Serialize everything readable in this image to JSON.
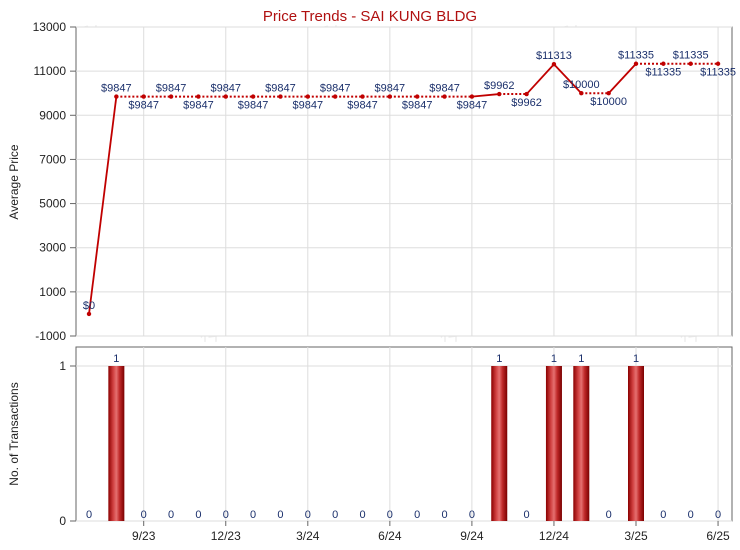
{
  "chart_data": [
    {
      "type": "line",
      "title": "Price Trends - SAI KUNG BLDG",
      "ylabel": "Average Price",
      "xlabel": "",
      "ylim": [
        -1000,
        13000
      ],
      "yticks": [
        "-1000",
        "1000",
        "3000",
        "5000",
        "7000",
        "9000",
        "11000",
        "13000"
      ],
      "ytick_values": [
        -1000,
        1000,
        3000,
        5000,
        7000,
        9000,
        11000,
        13000
      ],
      "x_tick_labels": [
        "9/23",
        "12/23",
        "3/24",
        "6/24",
        "9/24",
        "12/24",
        "3/25",
        "6/25"
      ],
      "grid": true,
      "color": "#c00000",
      "points": [
        {
          "i": 0,
          "value": 0,
          "label": "$0",
          "pos": "above"
        },
        {
          "i": 1,
          "value": 9847,
          "label": "$9847",
          "pos": "above"
        },
        {
          "i": 2,
          "value": 9847,
          "label": "$9847",
          "pos": "below"
        },
        {
          "i": 3,
          "value": 9847,
          "label": "$9847",
          "pos": "above"
        },
        {
          "i": 4,
          "value": 9847,
          "label": "$9847",
          "pos": "below"
        },
        {
          "i": 5,
          "value": 9847,
          "label": "$9847",
          "pos": "above"
        },
        {
          "i": 6,
          "value": 9847,
          "label": "$9847",
          "pos": "below"
        },
        {
          "i": 7,
          "value": 9847,
          "label": "$9847",
          "pos": "above"
        },
        {
          "i": 8,
          "value": 9847,
          "label": "$9847",
          "pos": "below"
        },
        {
          "i": 9,
          "value": 9847,
          "label": "$9847",
          "pos": "above"
        },
        {
          "i": 10,
          "value": 9847,
          "label": "$9847",
          "pos": "below"
        },
        {
          "i": 11,
          "value": 9847,
          "label": "$9847",
          "pos": "above"
        },
        {
          "i": 12,
          "value": 9847,
          "label": "$9847",
          "pos": "below"
        },
        {
          "i": 13,
          "value": 9847,
          "label": "$9847",
          "pos": "above"
        },
        {
          "i": 14,
          "value": 9847,
          "label": "$9847",
          "pos": "below"
        },
        {
          "i": 15,
          "value": 9962,
          "label": "$9962",
          "pos": "above"
        },
        {
          "i": 16,
          "value": 9962,
          "label": "$9962",
          "pos": "below"
        },
        {
          "i": 17,
          "value": 11313,
          "label": "$11313",
          "pos": "above"
        },
        {
          "i": 18,
          "value": 10000,
          "label": "$10000",
          "pos": "above"
        },
        {
          "i": 19,
          "value": 10000,
          "label": "$10000",
          "pos": "below"
        },
        {
          "i": 20,
          "value": 11335,
          "label": "$11335",
          "pos": "above"
        },
        {
          "i": 21,
          "value": 11335,
          "label": "$11335",
          "pos": "below"
        },
        {
          "i": 22,
          "value": 11335,
          "label": "$11335",
          "pos": "above"
        },
        {
          "i": 23,
          "value": 11335,
          "label": "$11335",
          "pos": "below"
        }
      ],
      "dotted_segments": [
        1,
        2,
        3,
        4,
        5,
        6,
        7,
        8,
        9,
        10,
        11,
        12,
        13,
        15,
        18,
        20,
        21,
        22
      ]
    },
    {
      "type": "bar",
      "ylabel": "No. of Transactions",
      "ylim": [
        0,
        1
      ],
      "yticks": [
        "0",
        "1"
      ],
      "ytick_values": [
        0,
        1
      ],
      "x_tick_labels": [
        "9/23",
        "12/23",
        "3/24",
        "6/24",
        "9/24",
        "12/24",
        "3/25",
        "6/25"
      ],
      "color": "#b22222",
      "values": [
        0,
        1,
        0,
        0,
        0,
        0,
        0,
        0,
        0,
        0,
        0,
        0,
        0,
        0,
        0,
        1,
        0,
        1,
        1,
        0,
        1,
        0,
        0,
        0
      ],
      "labels": [
        "0",
        "1",
        "0",
        "0",
        "0",
        "0",
        "0",
        "0",
        "0",
        "0",
        "0",
        "0",
        "0",
        "0",
        "0",
        "1",
        "0",
        "1",
        "1",
        "0",
        "1",
        "0",
        "0",
        "0"
      ]
    }
  ]
}
